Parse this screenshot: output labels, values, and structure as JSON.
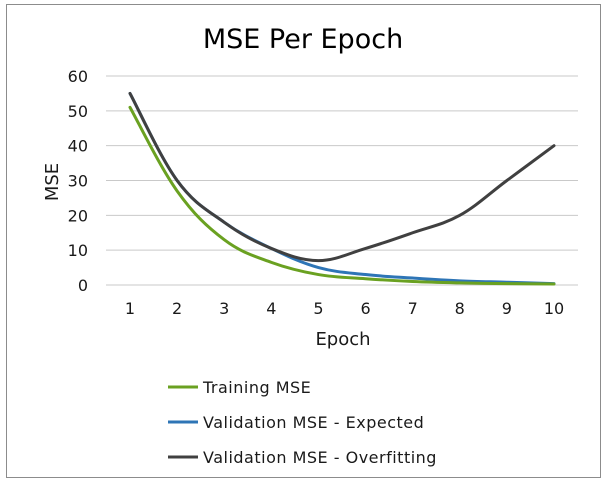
{
  "chart_data": {
    "type": "line",
    "title": "MSE Per Epoch",
    "xlabel": "Epoch",
    "ylabel": "MSE",
    "x": [
      1,
      2,
      3,
      4,
      5,
      6,
      7,
      8,
      9,
      10
    ],
    "xlim": [
      1,
      10
    ],
    "ylim": [
      0,
      60
    ],
    "yticks": [
      0,
      10,
      20,
      30,
      40,
      50,
      60
    ],
    "grid": "horizontal",
    "legend_position": "bottom",
    "series": [
      {
        "name": "Training MSE",
        "color": "#6aa121",
        "values": [
          51,
          27,
          13,
          6.5,
          3,
          1.8,
          1,
          0.6,
          0.4,
          0.3
        ]
      },
      {
        "name": "Validation MSE - Expected",
        "color": "#2e75b6",
        "values": [
          55,
          30,
          18,
          10.5,
          5,
          3,
          2,
          1.2,
          0.8,
          0.4
        ]
      },
      {
        "name": "Validation MSE - Overfitting",
        "color": "#404040",
        "values": [
          55,
          30,
          18,
          10.5,
          7,
          10.5,
          15,
          20,
          30,
          40
        ]
      }
    ]
  }
}
